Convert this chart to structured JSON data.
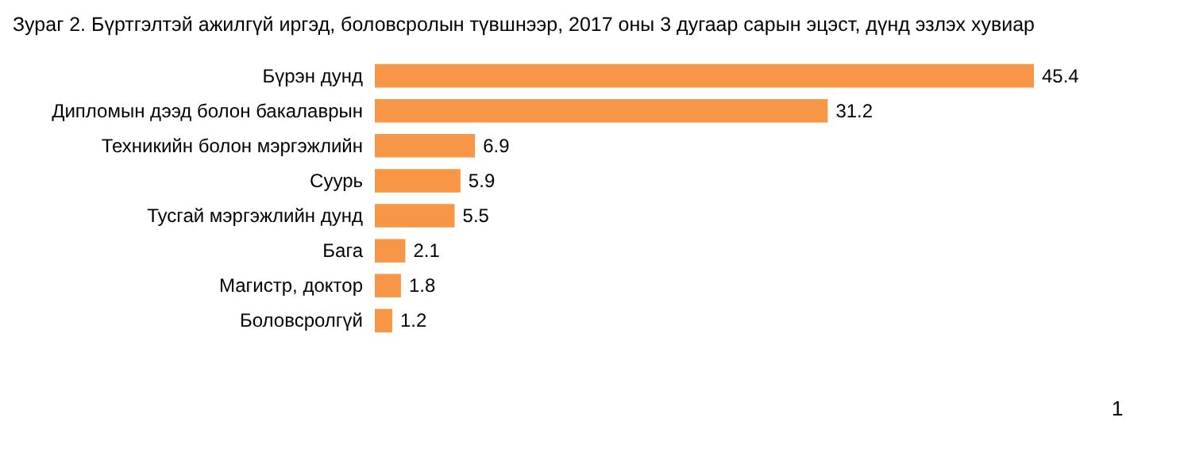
{
  "chart_data": {
    "type": "bar",
    "orientation": "horizontal",
    "title": "Зураг 2. Бүртгэлтэй ажилгүй иргэд, боловсролын түвшнээр, 2017 оны 3 дугаар сарын эцэст, дүнд эзлэх хувиар",
    "categories": [
      "Бүрэн дунд",
      "Дипломын дээд болон бакалаврын",
      "Техникийн болон мэргэжлийн",
      "Суурь",
      "Тусгай мэргэжлийн дунд",
      "Бага",
      "Магистр, доктор",
      "Боловсролгүй"
    ],
    "values": [
      45.4,
      31.2,
      6.9,
      5.9,
      5.5,
      2.1,
      1.8,
      1.2
    ],
    "color": "#f79646",
    "data_labels": true,
    "annotations": [
      "1"
    ]
  }
}
